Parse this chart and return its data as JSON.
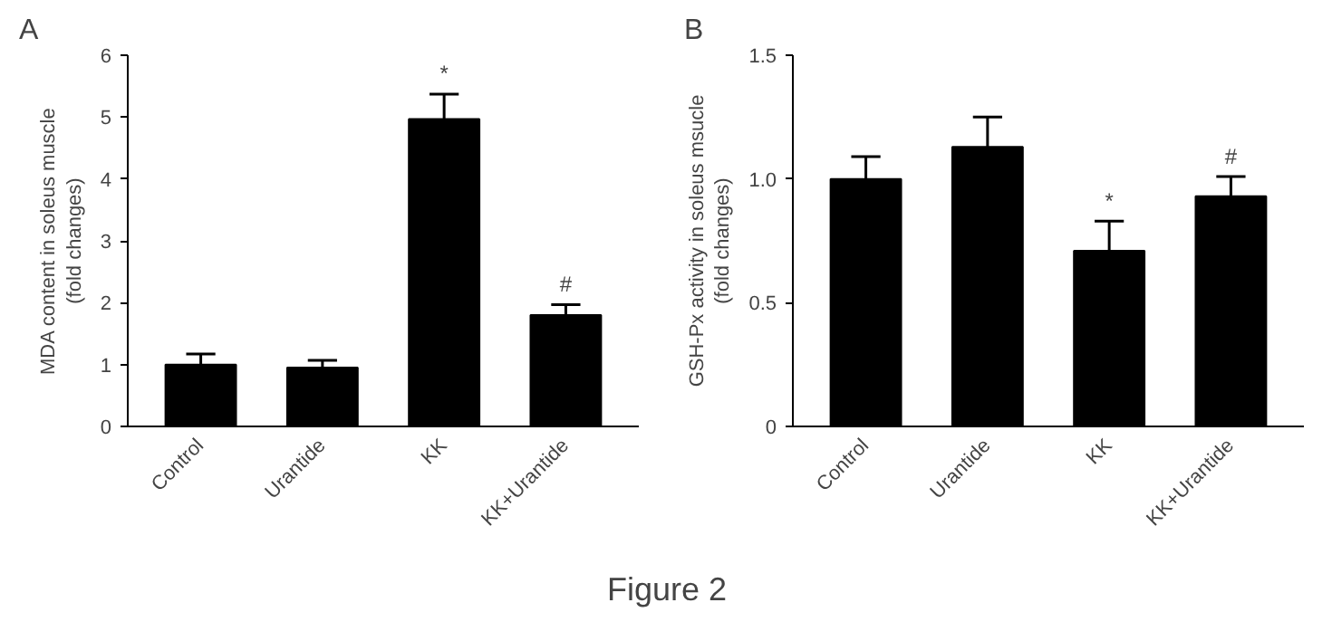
{
  "chart_data": [
    {
      "type": "bar",
      "title": "A",
      "ylabel": "MDA content in soleus muscle\n(fold changes)",
      "categories": [
        "Control",
        "Urantide",
        "KK",
        "KK+Urantide"
      ],
      "values": [
        1.0,
        0.95,
        4.97,
        1.8
      ],
      "errors": [
        0.17,
        0.12,
        0.4,
        0.17
      ],
      "color": "#000000",
      "ylim": [
        0,
        6
      ],
      "yticks": [
        0,
        1,
        2,
        3,
        4,
        5,
        6
      ],
      "grid": false,
      "annotations": [
        {
          "text": "*",
          "x": "KK",
          "y": 5.5
        },
        {
          "text": "#",
          "x": "KK+Urantide",
          "y": 2.1
        }
      ]
    },
    {
      "type": "bar",
      "title": "B",
      "ylabel": "GSH-Px activity in soleus msucle\n(fold changes)",
      "categories": [
        "Control",
        "Urantide",
        "KK",
        "KK+Urantide"
      ],
      "values": [
        1.0,
        1.13,
        0.71,
        0.93
      ],
      "errors": [
        0.09,
        0.12,
        0.12,
        0.08
      ],
      "color": "#000000",
      "ylim": [
        0,
        1.5
      ],
      "yticks": [
        0,
        {
          "value": 0.5,
          "label": "0.5"
        },
        {
          "value": 1.0,
          "label": "1.0"
        },
        {
          "value": 1.5,
          "label": "1.5"
        }
      ],
      "grid": false,
      "annotations": [
        {
          "text": "*",
          "x": "KK",
          "y": 0.86
        },
        {
          "text": "#",
          "x": "KK+Urantide",
          "y": 1.04
        }
      ]
    },
    {
      "type": "other",
      "annotations": [
        "Figure 2"
      ]
    }
  ]
}
